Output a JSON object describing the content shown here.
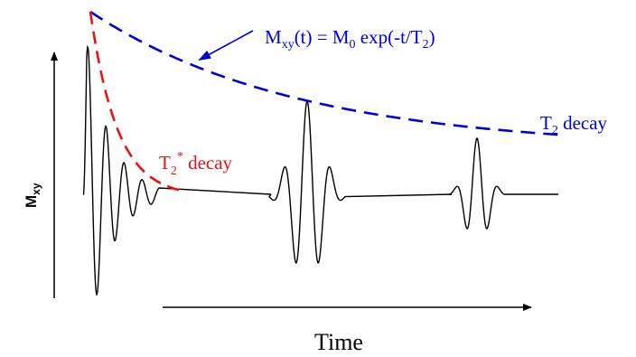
{
  "labels": {
    "y_axis_main": "M",
    "y_axis_sub": "xy",
    "x_axis": "Time",
    "equation": {
      "lhs_main": "M",
      "lhs_sub": "xy",
      "lhs_rest": "(t) = M",
      "m0_sub": "0",
      "rhs": " exp(-t/T",
      "t2_sub": "2",
      "close": ")"
    },
    "t2_decay": {
      "main": "T",
      "sub": "2",
      "rest": " decay"
    },
    "t2star_decay": {
      "main": "T",
      "sub": "2",
      "sup": "*",
      "rest": " decay"
    }
  },
  "colors": {
    "t2_curve": "#0000dd",
    "t2star_curve": "#ee1111",
    "signal": "#000000",
    "text": "#000000"
  }
}
